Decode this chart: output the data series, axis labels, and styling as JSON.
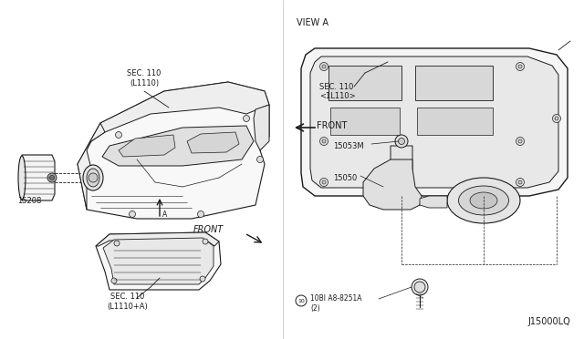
{
  "bg_color": "#ffffff",
  "line_color": "#1a1a1a",
  "text_color": "#1a1a1a",
  "title_right": "VIEW A",
  "label_sec110_left_line1": "SEC. 110",
  "label_sec110_left_line2": "(L1110)",
  "label_15208": "15208",
  "label_sec110_bottom_line1": "SEC. 110",
  "label_sec110_bottom_line2": "(L1110+A)",
  "label_view_a_sec110_line1": "SEC. 110",
  "label_view_a_sec110_line2": "<1L110>",
  "label_front_right": "FRONT",
  "label_15053M": "15053M",
  "label_15050": "15050",
  "label_bolt_line1": "10BI A8-8251A",
  "label_bolt_line2": "(2)",
  "label_diagram_id": "J15000LQ",
  "label_front_arrow": "FRONT",
  "font_size_small": 6.0,
  "font_size_medium": 7.0,
  "font_size_large": 8.0
}
